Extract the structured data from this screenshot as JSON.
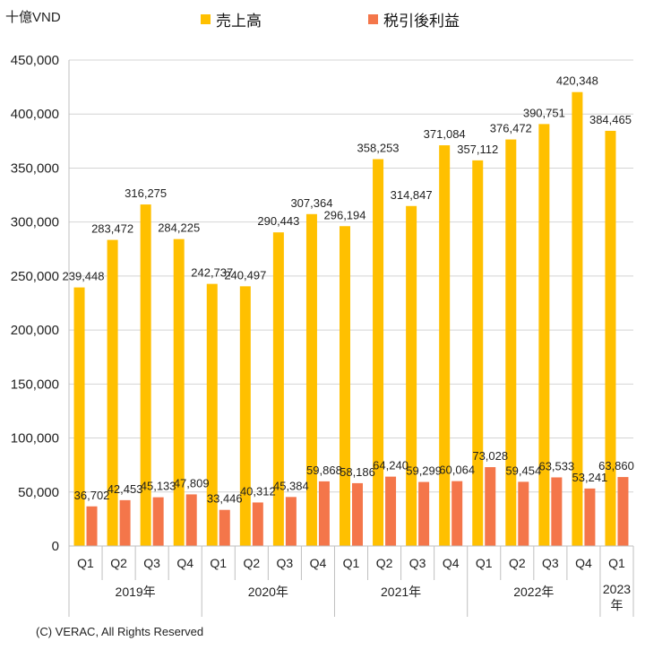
{
  "chart_data": {
    "type": "bar",
    "unit_label": "十億VND",
    "ylim": [
      0,
      450000
    ],
    "yticks": [
      0,
      50000,
      100000,
      150000,
      200000,
      250000,
      300000,
      350000,
      400000,
      450000
    ],
    "grid": true,
    "legend_position": "top-center",
    "categories": [
      "Q1",
      "Q2",
      "Q3",
      "Q4",
      "Q1",
      "Q2",
      "Q3",
      "Q4",
      "Q1",
      "Q2",
      "Q3",
      "Q4",
      "Q1",
      "Q2",
      "Q3",
      "Q4",
      "Q1"
    ],
    "groups": [
      {
        "label": "2019年",
        "count": 4
      },
      {
        "label": "2020年",
        "count": 4
      },
      {
        "label": "2021年",
        "count": 4
      },
      {
        "label": "2022年",
        "count": 4
      },
      {
        "label": "2023年",
        "count": 1
      }
    ],
    "series": [
      {
        "name": "売上高",
        "color": "#FFC000",
        "values": [
          239448,
          283472,
          316275,
          284225,
          242737,
          240497,
          290443,
          307364,
          296194,
          358253,
          314847,
          371084,
          357112,
          376472,
          390751,
          420348,
          384465
        ]
      },
      {
        "name": "税引後利益",
        "color": "#F4764A",
        "values": [
          36702,
          42453,
          45133,
          47809,
          33446,
          40312,
          45384,
          59868,
          58186,
          64240,
          59299,
          60064,
          73028,
          59454,
          63533,
          53241,
          63860
        ]
      }
    ]
  },
  "footer": {
    "copyright": "(C) VERAC, All Rights Reserved"
  }
}
